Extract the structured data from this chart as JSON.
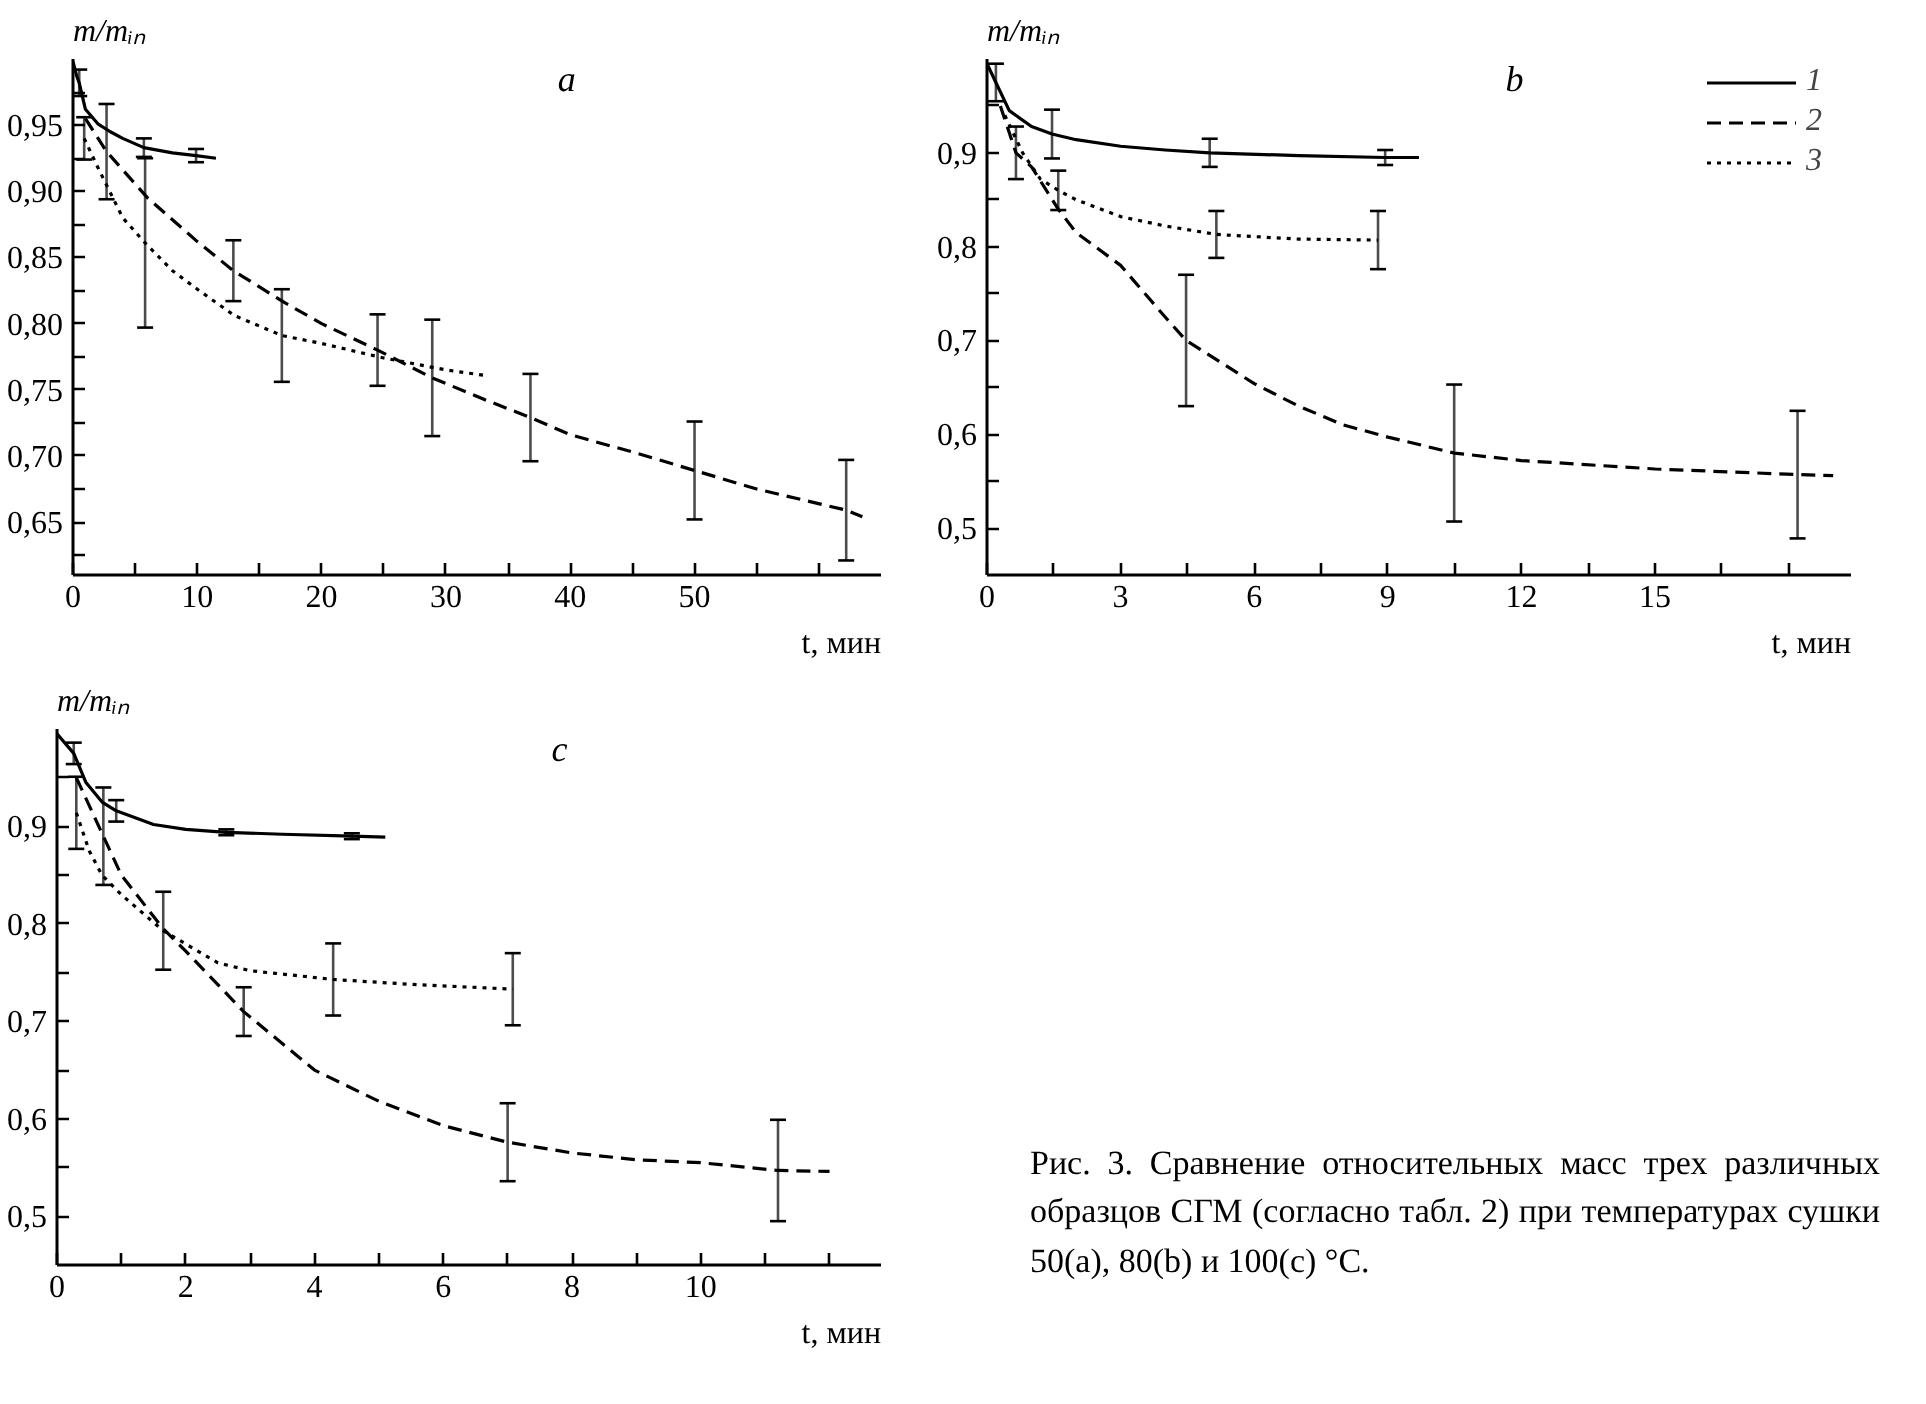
{
  "chart_data": [
    {
      "type": "line",
      "title": "a",
      "xlabel": "t, мин",
      "ylabel": "m/mᵢₙ",
      "xlim": [
        0,
        65
      ],
      "ylim": [
        0.61,
        1.0
      ],
      "xticks": [
        0,
        {
          "value": 5,
          "label": null
        },
        10,
        {
          "value": 15,
          "label": null
        },
        20,
        {
          "value": 25,
          "label": null
        },
        30,
        {
          "value": 35,
          "label": null
        },
        40,
        {
          "value": 45,
          "label": null
        },
        50,
        {
          "value": 55,
          "label": null
        },
        {
          "value": 60,
          "label": null
        }
      ],
      "yticks": [
        {
          "value": 0.625,
          "label": null
        },
        {
          "value": 0.65,
          "label": "0,65"
        },
        {
          "value": 0.675,
          "label": null
        },
        {
          "value": 0.7,
          "label": "0,70"
        },
        {
          "value": 0.725,
          "label": null
        },
        {
          "value": 0.75,
          "label": "0,75"
        },
        {
          "value": 0.775,
          "label": null
        },
        {
          "value": 0.8,
          "label": "0,80"
        },
        {
          "value": 0.825,
          "label": null
        },
        {
          "value": 0.85,
          "label": "0,85"
        },
        {
          "value": 0.875,
          "label": null
        },
        {
          "value": 0.9,
          "label": "0,90"
        },
        {
          "value": 0.925,
          "label": null
        },
        {
          "value": 0.95,
          "label": "0,95"
        },
        {
          "value": 0.975,
          "label": null
        }
      ],
      "series": [
        {
          "color": "#000000",
          "line_style": "solid",
          "x": [
            0,
            0.3,
            0.5,
            1,
            2,
            3,
            4,
            5.7,
            8,
            9.9,
            11.5
          ],
          "values": [
            0.998,
            0.987,
            0.982,
            0.962,
            0.951,
            0.945,
            0.94,
            0.933,
            0.929,
            0.927,
            0.925
          ],
          "errors": [
            null,
            null,
            0.01,
            null,
            null,
            null,
            null,
            0.007,
            null,
            0.005,
            null
          ]
        },
        {
          "color": "#000000",
          "line_style": "dashed",
          "x": [
            1,
            2.7,
            6,
            10,
            12.9,
            17,
            20,
            24.5,
            28.9,
            33,
            36.8,
            40,
            45,
            50,
            55,
            62.2,
            63.5
          ],
          "values": [
            0.955,
            0.93,
            0.895,
            0.862,
            0.84,
            0.816,
            0.8,
            0.78,
            0.759,
            0.743,
            0.729,
            0.716,
            0.703,
            0.689,
            0.675,
            0.659,
            0.654
          ],
          "errors": [
            null,
            0.036,
            null,
            null,
            0.023,
            null,
            null,
            0.027,
            0.044,
            null,
            0.033,
            null,
            null,
            0.037,
            null,
            0.038,
            null
          ]
        },
        {
          "color": "#000000",
          "line_style": "dotted",
          "x": [
            0.9,
            2,
            4,
            5.8,
            8,
            10,
            13,
            16.8,
            20,
            25,
            30,
            33
          ],
          "values": [
            0.94,
            0.918,
            0.88,
            0.861,
            0.84,
            0.826,
            0.806,
            0.791,
            0.785,
            0.774,
            0.765,
            0.761
          ],
          "errors": [
            0.016,
            null,
            null,
            0.064,
            null,
            null,
            null,
            0.035,
            null,
            null,
            null,
            null
          ]
        }
      ]
    },
    {
      "type": "line",
      "title": "b",
      "xlabel": "t, мин",
      "ylabel": "m/mᵢₙ",
      "xlim": [
        0,
        19.4
      ],
      "ylim": [
        0.45,
        1.0
      ],
      "legend": "top right",
      "xticks": [
        0,
        {
          "value": 1.5,
          "label": null
        },
        3,
        {
          "value": 4.5,
          "label": null
        },
        6,
        {
          "value": 7.5,
          "label": null
        },
        9,
        {
          "value": 10.5,
          "label": null
        },
        12,
        {
          "value": 13.5,
          "label": null
        },
        15,
        {
          "value": 16.5,
          "label": null
        },
        {
          "value": 18,
          "label": null
        }
      ],
      "yticks": [
        {
          "value": 0.5,
          "label": "0,5"
        },
        {
          "value": 0.55,
          "label": null
        },
        {
          "value": 0.6,
          "label": "0,6"
        },
        {
          "value": 0.65,
          "label": null
        },
        {
          "value": 0.7,
          "label": "0,7"
        },
        {
          "value": 0.75,
          "label": null
        },
        {
          "value": 0.8,
          "label": "0,8"
        },
        {
          "value": 0.85,
          "label": null
        },
        {
          "value": 0.9,
          "label": "0,9"
        },
        {
          "value": 0.95,
          "label": null
        }
      ],
      "series": [
        {
          "name": "1",
          "color": "#000000",
          "line_style": "solid",
          "x": [
            0,
            0.2,
            0.5,
            1,
            1.46,
            2,
            3,
            4,
            5,
            7,
            8.94,
            9.7
          ],
          "values": [
            0.995,
            0.975,
            0.945,
            0.928,
            0.92,
            0.914,
            0.907,
            0.903,
            0.9,
            0.897,
            0.895,
            0.895
          ],
          "errors": [
            null,
            0.02,
            null,
            null,
            0.026,
            null,
            null,
            null,
            0.015,
            null,
            0.008,
            null
          ]
        },
        {
          "name": "2",
          "color": "#000000",
          "line_style": "dashed",
          "x": [
            0.3,
            0.65,
            1,
            1.6,
            2,
            3,
            4,
            4.47,
            6,
            7,
            8,
            9,
            10.49,
            12,
            15,
            18.2,
            19
          ],
          "values": [
            0.95,
            0.9,
            0.885,
            0.84,
            0.815,
            0.78,
            0.725,
            0.7,
            0.654,
            0.63,
            0.61,
            0.597,
            0.58,
            0.572,
            0.563,
            0.557,
            0.556
          ],
          "errors": [
            null,
            0.028,
            null,
            null,
            null,
            null,
            null,
            0.07,
            null,
            null,
            null,
            null,
            0.073,
            null,
            null,
            0.068,
            null
          ]
        },
        {
          "name": "3",
          "color": "#000000",
          "line_style": "dotted",
          "x": [
            0.4,
            0.8,
            1.2,
            1.6,
            2,
            3,
            4,
            5.15,
            7,
            8.78
          ],
          "values": [
            0.94,
            0.9,
            0.872,
            0.86,
            0.85,
            0.832,
            0.822,
            0.813,
            0.808,
            0.807
          ],
          "errors": [
            null,
            null,
            null,
            0.021,
            null,
            null,
            null,
            0.025,
            null,
            0.031
          ]
        }
      ]
    },
    {
      "type": "line",
      "title": "c",
      "xlabel": "t, мин",
      "ylabel": "m/mᵢₙ",
      "xlim": [
        0,
        12.8
      ],
      "ylim": [
        0.45,
        1.0
      ],
      "xticks": [
        0,
        {
          "value": 1,
          "label": null
        },
        2,
        {
          "value": 3,
          "label": null
        },
        4,
        {
          "value": 5,
          "label": null
        },
        6,
        {
          "value": 7,
          "label": null
        },
        8,
        {
          "value": 9,
          "label": null
        },
        10,
        {
          "value": 11,
          "label": null
        },
        {
          "value": 12,
          "label": null
        }
      ],
      "yticks": [
        {
          "value": 0.5,
          "label": "0,5"
        },
        {
          "value": 0.55,
          "label": null
        },
        {
          "value": 0.6,
          "label": "0,6"
        },
        {
          "value": 0.65,
          "label": null
        },
        {
          "value": 0.7,
          "label": "0,7"
        },
        {
          "value": 0.75,
          "label": null
        },
        {
          "value": 0.8,
          "label": "0,8"
        },
        {
          "value": 0.85,
          "label": null
        },
        {
          "value": 0.9,
          "label": "0,9"
        },
        {
          "value": 0.95,
          "label": null
        }
      ],
      "series": [
        {
          "color": "#000000",
          "line_style": "solid",
          "x": [
            0,
            0.26,
            0.45,
            0.7,
            0.92,
            1.5,
            2,
            2.63,
            3.5,
            4.58,
            5.1
          ],
          "values": [
            0.995,
            0.975,
            0.945,
            0.925,
            0.916,
            0.902,
            0.897,
            0.894,
            0.892,
            0.89,
            0.889
          ],
          "errors": [
            null,
            0.011,
            null,
            null,
            0.011,
            null,
            null,
            0.003,
            null,
            0.003,
            null
          ]
        },
        {
          "color": "#000000",
          "line_style": "dashed",
          "x": [
            0.3,
            0.72,
            1,
            1.65,
            2,
            2.9,
            4,
            5,
            6,
            7,
            8,
            9,
            10,
            11.2,
            12
          ],
          "values": [
            0.95,
            0.89,
            0.85,
            0.795,
            0.772,
            0.71,
            0.65,
            0.618,
            0.593,
            0.576,
            0.565,
            0.558,
            0.555,
            0.547,
            0.546
          ],
          "errors": [
            null,
            0.05,
            null,
            null,
            null,
            0.025,
            null,
            null,
            null,
            0.04,
            null,
            null,
            null,
            0.052,
            null
          ]
        },
        {
          "color": "#000000",
          "line_style": "dotted",
          "x": [
            0.3,
            0.5,
            0.7,
            1,
            1.65,
            2.5,
            3,
            4.29,
            5.5,
            7.08
          ],
          "values": [
            0.914,
            0.875,
            0.85,
            0.83,
            0.793,
            0.76,
            0.752,
            0.743,
            0.738,
            0.733
          ],
          "errors": [
            0.037,
            null,
            null,
            null,
            0.04,
            null,
            null,
            0.037,
            null,
            0.037
          ]
        }
      ]
    },
    {
      "type": "other",
      "annotations": [
        "Рис. 3. Сравнение относительных масс трех различных образцов СГМ (согласно табл. 2) при температурах сушки 50(a), 80(b) и 100(c) °C."
      ]
    }
  ]
}
